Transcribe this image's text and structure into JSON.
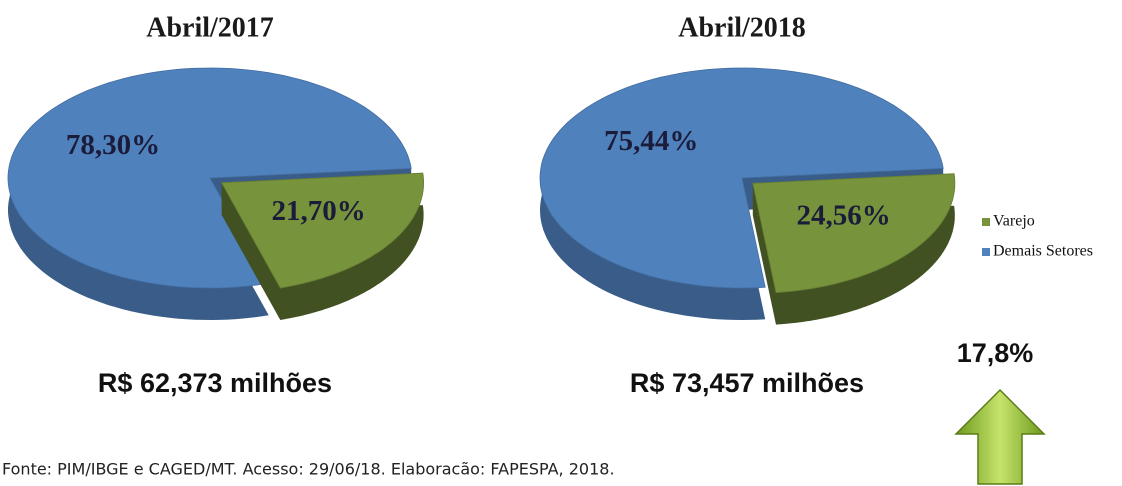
{
  "chart_data": [
    {
      "type": "pie",
      "title": "Abril/2017",
      "categories": [
        "Varejo",
        "Demais Setores"
      ],
      "values": [
        21.7,
        78.3
      ],
      "value_labels": [
        "21,70%",
        "78,30%"
      ],
      "colors": [
        "#77933c",
        "#4f81bd"
      ],
      "annotation": "R$ 62,373 milhões"
    },
    {
      "type": "pie",
      "title": "Abril/2018",
      "categories": [
        "Varejo",
        "Demais Setores"
      ],
      "values": [
        24.56,
        75.44
      ],
      "value_labels": [
        "24,56%",
        "75,44%"
      ],
      "colors": [
        "#77933c",
        "#4f81bd"
      ],
      "annotation": "R$ 73,457 milhões"
    }
  ],
  "growth": "17,8%",
  "source": "Fonte: PIM/IBGE e CAGED/MT. Acesso: 29/06/18.  Elaboracão: FAPESPA, 2018."
}
